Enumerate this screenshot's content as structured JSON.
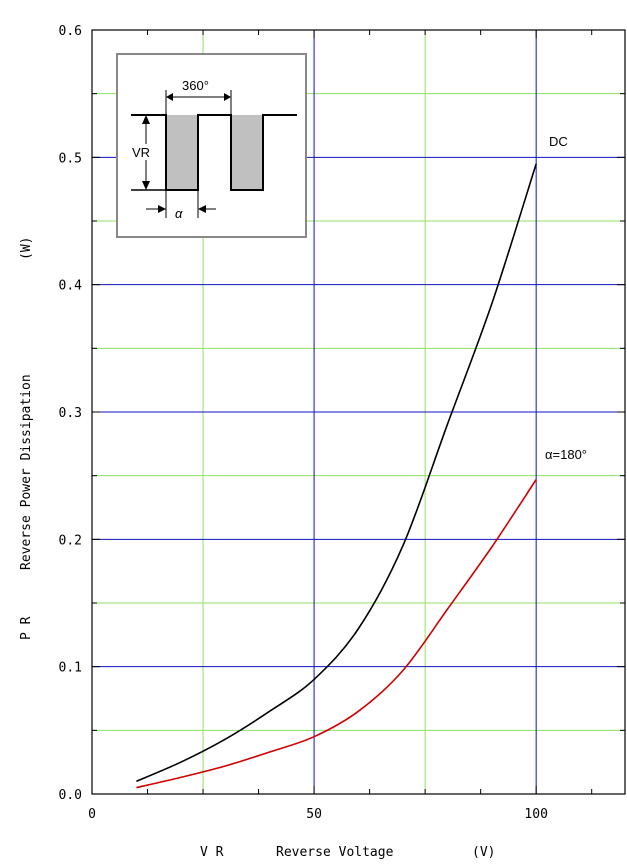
{
  "chart_data": {
    "type": "line",
    "xlabel_prefix": "V R",
    "xlabel": "Reverse Voltage",
    "xlabel_unit": "(V)",
    "ylabel_prefix": "P R",
    "ylabel": "Reverse  Power  Dissipation",
    "ylabel_unit": "(W)",
    "xlim": [
      0,
      120
    ],
    "ylim": [
      0,
      0.6
    ],
    "x_ticks": [
      0,
      50,
      100
    ],
    "x_tick_labels": [
      "0",
      "50",
      "100"
    ],
    "y_ticks": [
      0.0,
      0.1,
      0.2,
      0.3,
      0.4,
      0.5,
      0.6
    ],
    "y_tick_labels": [
      "0.0",
      "0.1",
      "0.2",
      "0.3",
      "0.4",
      "0.5",
      "0.6"
    ],
    "grid": true,
    "major_grid_color": "#1010c0",
    "minor_grid_color": "#90e060",
    "series": [
      {
        "name": "DC",
        "color": "#000000",
        "x": [
          10,
          20,
          30,
          40,
          50,
          60,
          70,
          80,
          90,
          100
        ],
        "y": [
          0.01,
          0.025,
          0.043,
          0.065,
          0.09,
          0.13,
          0.195,
          0.29,
          0.385,
          0.495
        ]
      },
      {
        "name": "α=180°",
        "color": "#d00000",
        "x": [
          10,
          20,
          30,
          40,
          50,
          60,
          70,
          80,
          90,
          100
        ],
        "y": [
          0.005,
          0.013,
          0.022,
          0.033,
          0.045,
          0.065,
          0.097,
          0.145,
          0.194,
          0.247
        ]
      }
    ]
  },
  "inset": {
    "period_label": "360°",
    "voltage_label": "VR",
    "width_label": "α",
    "fill_color": "#c0c0c0"
  }
}
